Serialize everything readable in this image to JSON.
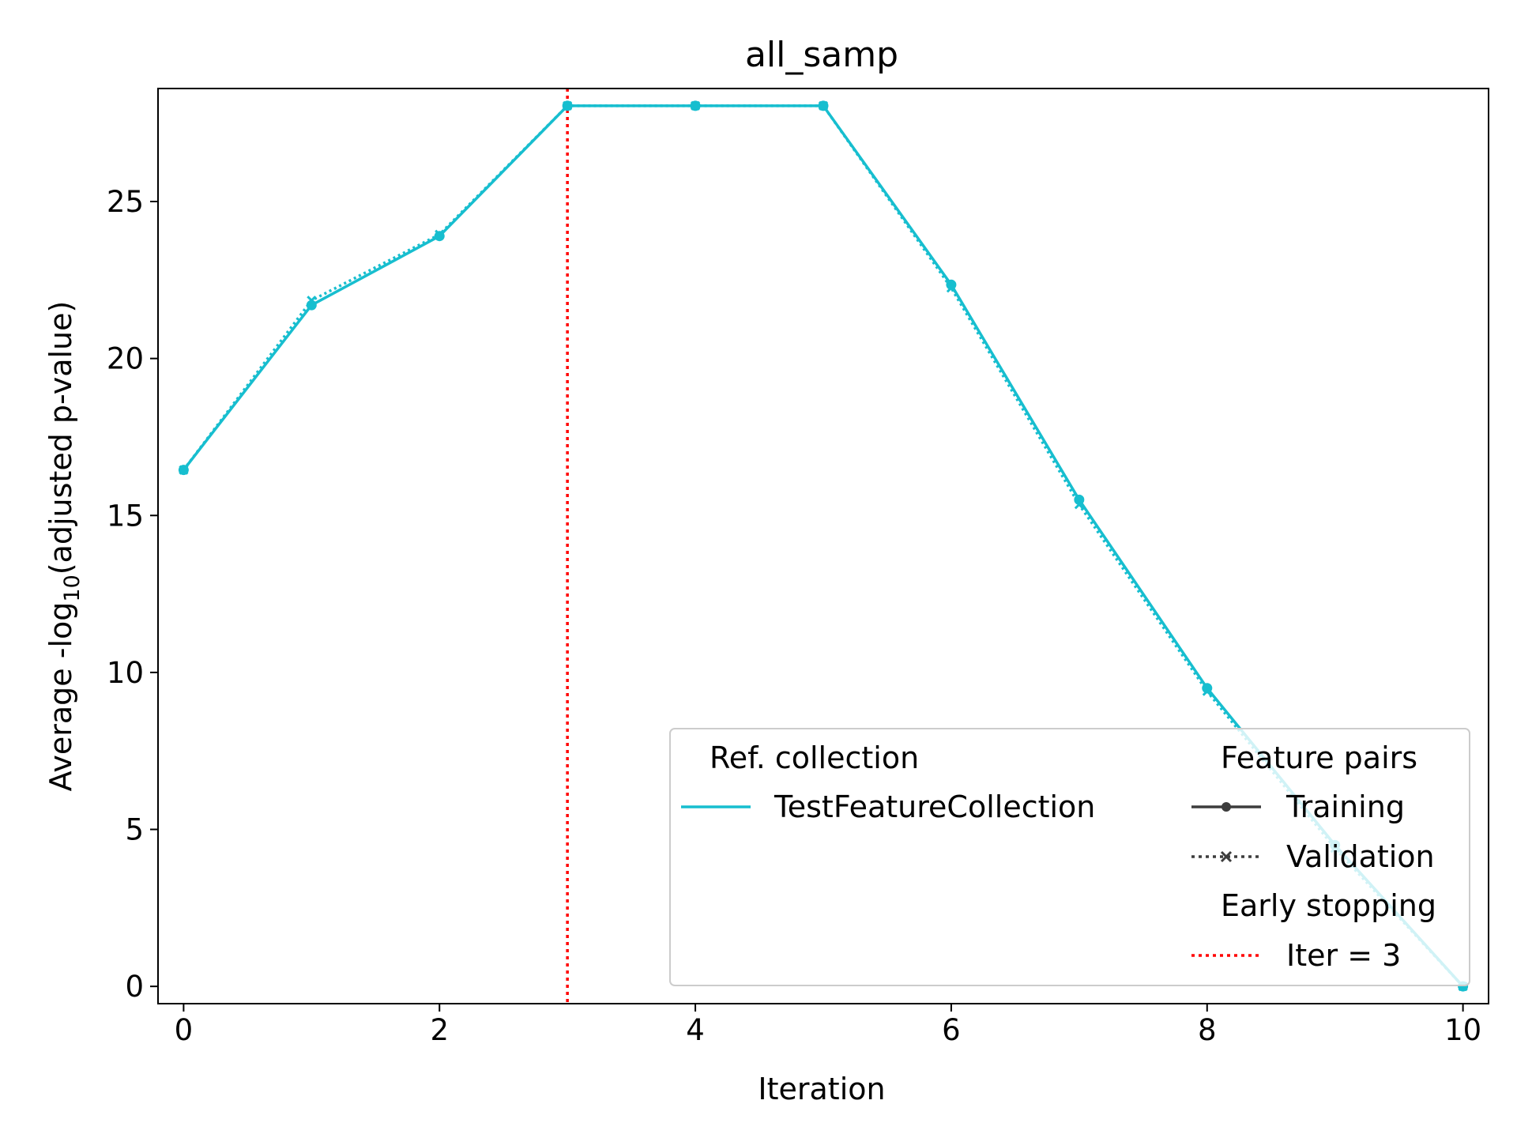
{
  "chart_data": {
    "type": "line",
    "title": "all_samp",
    "xlabel": "Iteration",
    "ylabel_parts": {
      "prefix": "Average -log",
      "subscript": "10",
      "suffix": "(adjusted p-value)"
    },
    "xlim": [
      -0.2,
      10.2
    ],
    "ylim": [
      -0.55,
      28.6
    ],
    "x_ticks": [
      0,
      2,
      4,
      6,
      8,
      10
    ],
    "y_ticks": [
      0,
      5,
      10,
      15,
      20,
      25
    ],
    "grid": false,
    "x": [
      0,
      1,
      2,
      3,
      4,
      5,
      6,
      7,
      8,
      9,
      10
    ],
    "series": [
      {
        "name": "Training",
        "style": "solid",
        "marker": "circle",
        "values": [
          16.45,
          21.7,
          23.9,
          28.05,
          28.05,
          28.05,
          22.35,
          15.5,
          9.5,
          4.5,
          0.0
        ]
      },
      {
        "name": "Validation",
        "style": "dotted",
        "marker": "x",
        "values": [
          16.45,
          21.85,
          23.95,
          28.05,
          28.05,
          28.05,
          22.25,
          15.35,
          9.4,
          4.4,
          0.0
        ]
      }
    ],
    "series_color": "#17becf",
    "early_stopping": {
      "x": 3,
      "color": "#ff0000"
    },
    "legend": {
      "placement": "lower-right",
      "ref_title": "Ref. collection",
      "ref_entry": "TestFeatureCollection",
      "pairs_title": "Feature pairs",
      "training_label": "Training",
      "validation_label": "Validation",
      "early_title": "Early stopping",
      "early_label": "Iter = 3"
    }
  }
}
